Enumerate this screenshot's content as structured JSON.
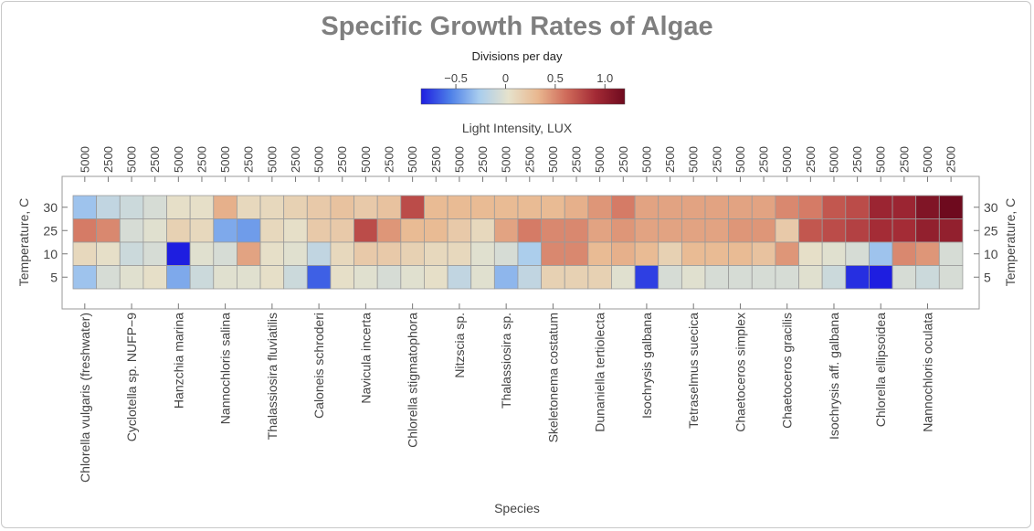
{
  "chart_data": {
    "type": "heatmap",
    "title": "Specific Growth Rates of Algae",
    "legend": {
      "title": "Divisions per day",
      "ticks": [
        "−0.5",
        "0",
        "0.5",
        "1.0"
      ],
      "tick_values": [
        -0.5,
        0,
        0.5,
        1.0
      ],
      "range": [
        -0.85,
        1.2
      ],
      "colors": [
        "#1e1ee0",
        "#4d7fe8",
        "#a9cdee",
        "#e6e2cc",
        "#e9b890",
        "#cf6a5a",
        "#a32a35",
        "#6e0a1e"
      ]
    },
    "top_axis_label": "Light Intensity, LUX",
    "xlabel": "Species",
    "ylabel_left": "Temperature, C",
    "ylabel_right": "Temperature, C",
    "temperatures": [
      "30",
      "25",
      "10",
      "5"
    ],
    "lux": [
      "5000",
      "2500",
      "5000",
      "2500",
      "5000",
      "2500",
      "5000",
      "2500",
      "5000",
      "2500",
      "5000",
      "2500",
      "5000",
      "2500",
      "5000",
      "2500",
      "5000",
      "2500",
      "5000",
      "2500",
      "5000",
      "2500",
      "5000",
      "2500",
      "5000",
      "2500",
      "5000",
      "2500",
      "5000",
      "2500",
      "5000",
      "2500",
      "5000",
      "2500",
      "5000",
      "2500",
      "5000",
      "2500"
    ],
    "species": [
      "Chlorella vulgaris (freshwater)",
      "Cyclotella sp. NUFP−9",
      "Hanzchia marina",
      "Nannochloris salina",
      "Thalassiosira fluviatilis",
      "Caloneis schroderi",
      "Navicula incerta",
      "Chlorella stigmatophora",
      "Nitzscia sp.",
      "Thalassiosira sp.",
      "Skeletonema costatum",
      "Dunaniella tertiolecta",
      "Isochrysis galbana",
      "Tetraselmus suecica",
      "Chaetoceros simplex",
      "Chaetoceros gracilis",
      "Isochrysis aff. galbana",
      "Chlorella ellipsoidea",
      "Nannochloris oculata"
    ],
    "values": [
      [
        -0.3,
        -0.15,
        -0.1,
        -0.05,
        0.05,
        0.05,
        0.35,
        0.1,
        0.1,
        0.15,
        0.2,
        0.25,
        0.2,
        0.25,
        0.75,
        0.3,
        0.3,
        0.3,
        0.3,
        0.3,
        0.3,
        0.35,
        0.45,
        0.55,
        0.4,
        0.4,
        0.4,
        0.4,
        0.4,
        0.4,
        0.5,
        0.55,
        0.7,
        0.75,
        0.95,
        0.95,
        1.1,
        1.2
      ],
      [
        0.55,
        0.5,
        -0.05,
        0.0,
        0.15,
        0.1,
        -0.4,
        -0.45,
        0.1,
        0.05,
        0.2,
        0.2,
        0.75,
        0.45,
        0.3,
        0.3,
        0.2,
        0.1,
        0.4,
        0.55,
        0.5,
        0.5,
        0.4,
        0.45,
        0.4,
        0.4,
        0.4,
        0.4,
        0.45,
        0.45,
        0.2,
        0.7,
        0.75,
        0.8,
        0.9,
        0.9,
        1.0,
        1.0
      ],
      [
        0.1,
        0.05,
        -0.1,
        -0.05,
        -0.85,
        0.0,
        -0.05,
        0.4,
        0.05,
        0.0,
        -0.15,
        0.1,
        0.2,
        0.2,
        0.15,
        0.1,
        0.1,
        0.0,
        -0.05,
        -0.25,
        0.5,
        0.5,
        0.3,
        0.35,
        0.3,
        0.15,
        0.3,
        0.3,
        0.3,
        0.25,
        0.45,
        0.05,
        0.0,
        -0.05,
        -0.3,
        0.5,
        0.45,
        -0.05
      ],
      [
        -0.3,
        -0.05,
        0.0,
        0.05,
        -0.4,
        -0.1,
        0.0,
        0.0,
        0.05,
        -0.1,
        -0.65,
        0.05,
        0.0,
        -0.05,
        0.0,
        0.05,
        -0.15,
        0.0,
        -0.35,
        -0.15,
        0.15,
        0.15,
        0.15,
        0.0,
        -0.75,
        -0.05,
        0.0,
        -0.05,
        -0.05,
        -0.05,
        -0.05,
        0.0,
        -0.1,
        -0.8,
        -0.85,
        -0.05,
        -0.1,
        -0.05
      ]
    ],
    "grid": true
  }
}
